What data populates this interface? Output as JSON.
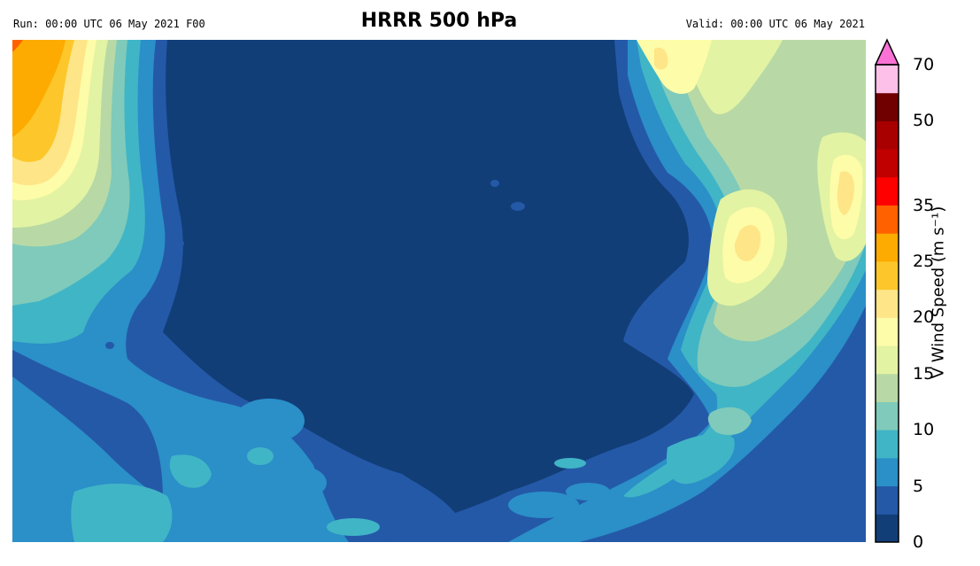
{
  "header": {
    "run": "Run: 00:00 UTC 06 May 2021 F00",
    "title": "HRRR 500 hPa",
    "valid": "Valid: 00:00 UTC 06 May 2021"
  },
  "colorbar": {
    "label": "V Wind Speed (m s⁻¹)",
    "tick_labels": [
      "0",
      "5",
      "10",
      "15",
      "20",
      "25",
      "35",
      "50",
      "70"
    ],
    "levels": [
      0,
      2.5,
      5,
      7.5,
      10,
      12.5,
      15,
      17.5,
      20,
      22.5,
      25,
      30,
      35,
      40,
      45,
      50,
      60,
      70
    ],
    "colors": [
      "#123e78",
      "#2459a8",
      "#2b8fc8",
      "#40b5c6",
      "#7fcabb",
      "#b8d9a5",
      "#e2f3a3",
      "#fdfca8",
      "#fee587",
      "#fdc72b",
      "#fdab00",
      "#ff6100",
      "#ff0000",
      "#c00000",
      "#a80000",
      "#700000",
      "#fdc0e8"
    ],
    "extend_color": "#fa72d5"
  },
  "map": {
    "background": "#123e78"
  }
}
